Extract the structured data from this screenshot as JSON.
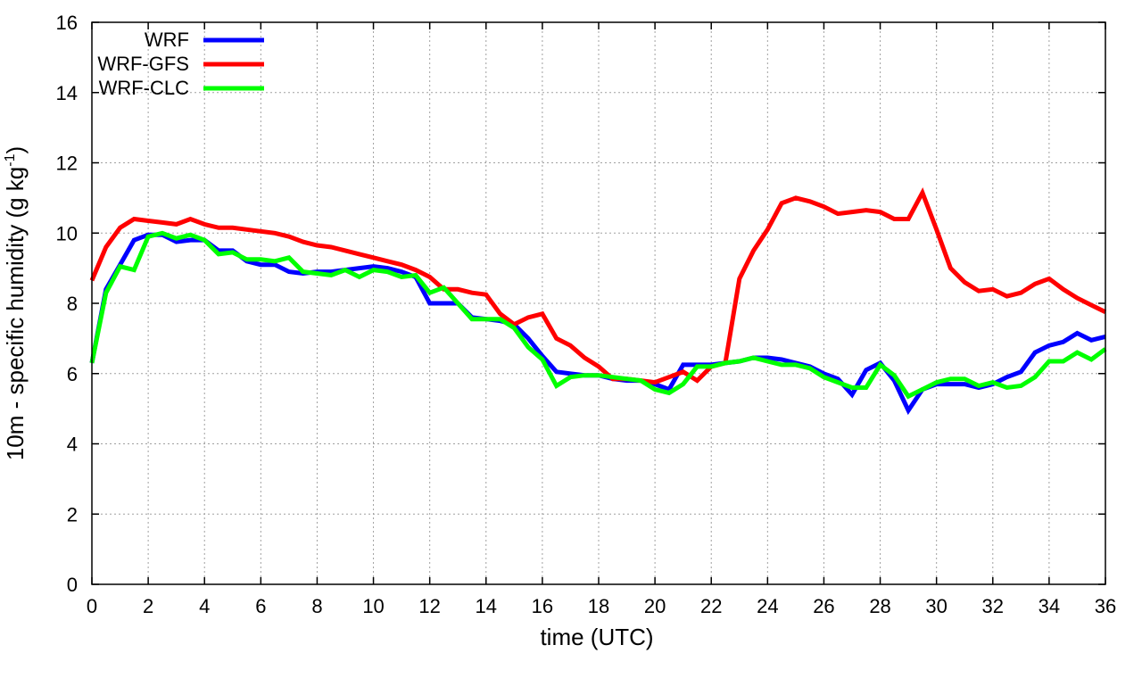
{
  "chart_data": {
    "type": "line",
    "xlabel": "time (UTC)",
    "ylabel_main": "10m - specific humidity (g kg",
    "ylabel_sup": "-1",
    "ylabel_tail": ")",
    "xlim": [
      0,
      36
    ],
    "ylim": [
      0,
      16
    ],
    "xticks": [
      0,
      2,
      4,
      6,
      8,
      10,
      12,
      14,
      16,
      18,
      20,
      22,
      24,
      26,
      28,
      30,
      32,
      34,
      36
    ],
    "yticks": [
      0,
      2,
      4,
      6,
      8,
      10,
      12,
      14,
      16
    ],
    "grid": true,
    "legend_position": "top-left",
    "x": [
      0,
      0.5,
      1,
      1.5,
      2,
      2.5,
      3,
      3.5,
      4,
      4.5,
      5,
      5.5,
      6,
      6.5,
      7,
      7.5,
      8,
      8.5,
      9,
      9.5,
      10,
      10.5,
      11,
      11.5,
      12,
      12.5,
      13,
      13.5,
      14,
      14.5,
      15,
      15.5,
      16,
      16.5,
      17,
      17.5,
      18,
      18.5,
      19,
      19.5,
      20,
      20.5,
      21,
      21.5,
      22,
      22.5,
      23,
      23.5,
      24,
      24.5,
      25,
      25.5,
      26,
      26.5,
      27,
      27.5,
      28,
      28.5,
      29,
      29.5,
      30,
      30.5,
      31,
      31.5,
      32,
      32.5,
      33,
      33.5,
      34,
      34.5,
      35,
      35.5,
      36
    ],
    "series": [
      {
        "name": "WRF",
        "color": "#0000ff",
        "values": [
          6.3,
          8.4,
          9.1,
          9.8,
          9.95,
          9.95,
          9.75,
          9.8,
          9.8,
          9.5,
          9.5,
          9.2,
          9.1,
          9.1,
          8.9,
          8.85,
          8.9,
          8.9,
          8.95,
          9.0,
          9.05,
          9.0,
          8.9,
          8.75,
          8.0,
          8.0,
          8.0,
          7.6,
          7.55,
          7.5,
          7.4,
          7.0,
          6.5,
          6.05,
          6.0,
          5.95,
          5.95,
          5.85,
          5.8,
          5.8,
          5.7,
          5.55,
          6.25,
          6.25,
          6.25,
          6.3,
          6.35,
          6.45,
          6.45,
          6.4,
          6.3,
          6.2,
          6.0,
          5.85,
          5.4,
          6.1,
          6.3,
          5.8,
          4.95,
          5.55,
          5.7,
          5.7,
          5.7,
          5.6,
          5.7,
          5.9,
          6.05,
          6.6,
          6.8,
          6.9,
          7.15,
          6.95,
          7.05
        ]
      },
      {
        "name": "WRF-GFS",
        "color": "#ff0000",
        "values": [
          8.65,
          9.6,
          10.15,
          10.4,
          10.35,
          10.3,
          10.25,
          10.4,
          10.25,
          10.15,
          10.15,
          10.1,
          10.05,
          10.0,
          9.9,
          9.75,
          9.65,
          9.6,
          9.5,
          9.4,
          9.3,
          9.2,
          9.1,
          8.95,
          8.75,
          8.4,
          8.4,
          8.3,
          8.25,
          7.7,
          7.4,
          7.6,
          7.7,
          7.0,
          6.8,
          6.45,
          6.2,
          5.85,
          5.85,
          5.8,
          5.75,
          5.9,
          6.05,
          5.8,
          6.2,
          6.3,
          8.7,
          9.5,
          10.1,
          10.85,
          11.0,
          10.9,
          10.75,
          10.55,
          10.6,
          10.65,
          10.6,
          10.4,
          10.4,
          11.15,
          10.1,
          9.0,
          8.6,
          8.35,
          8.4,
          8.2,
          8.3,
          8.55,
          8.7,
          8.4,
          8.15,
          7.95,
          7.75
        ]
      },
      {
        "name": "WRF-CLC",
        "color": "#00ff00",
        "values": [
          6.3,
          8.3,
          9.05,
          8.95,
          9.9,
          10.0,
          9.85,
          9.95,
          9.8,
          9.4,
          9.45,
          9.25,
          9.25,
          9.2,
          9.3,
          8.9,
          8.85,
          8.8,
          8.95,
          8.75,
          8.95,
          8.9,
          8.75,
          8.8,
          8.3,
          8.45,
          8.0,
          7.55,
          7.55,
          7.55,
          7.3,
          6.75,
          6.4,
          5.65,
          5.9,
          5.95,
          5.95,
          5.9,
          5.85,
          5.8,
          5.55,
          5.45,
          5.7,
          6.2,
          6.2,
          6.3,
          6.35,
          6.45,
          6.35,
          6.25,
          6.25,
          6.15,
          5.9,
          5.75,
          5.6,
          5.6,
          6.25,
          5.95,
          5.35,
          5.55,
          5.75,
          5.85,
          5.85,
          5.65,
          5.75,
          5.6,
          5.65,
          5.9,
          6.35,
          6.35,
          6.6,
          6.4,
          6.7
        ]
      }
    ]
  }
}
